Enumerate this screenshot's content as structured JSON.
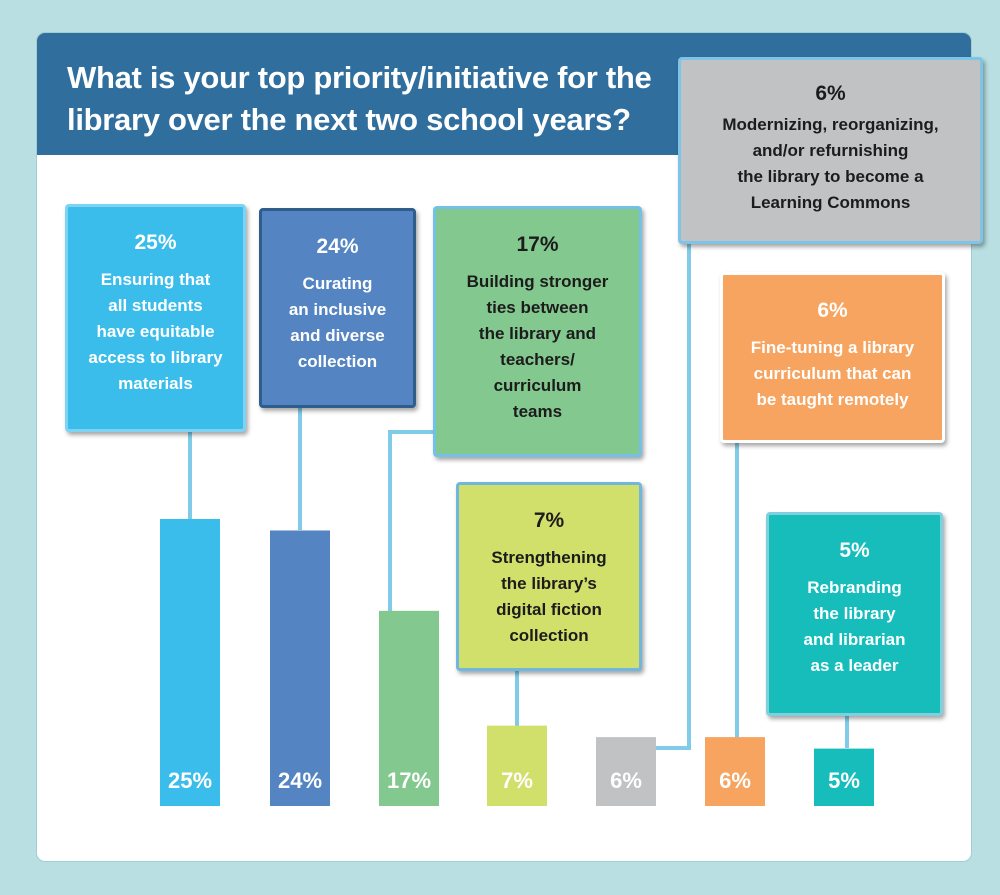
{
  "title": "What is your top priority/initiative for the library over the next two school years?",
  "chart_data": {
    "type": "bar",
    "title": "What is your top priority/initiative for the library over the next two school years?",
    "categories": [
      "Ensuring that all students have equitable access to library materials",
      "Curating an inclusive and diverse collection",
      "Building stronger ties between the library and teachers/ curriculum teams",
      "Strengthening the library’s digital fiction collection",
      "Modernizing, reorganizing, and/or refurnishing the library to become a Learning Commons",
      "Fine-tuning a library curriculum that can be taught remotely",
      "Rebranding the library and librarian as a leader"
    ],
    "values": [
      25,
      24,
      17,
      7,
      6,
      6,
      5
    ],
    "value_labels": [
      "25%",
      "24%",
      "17%",
      "7%",
      "6%",
      "6%",
      "5%"
    ],
    "colors": [
      "#3bbdec",
      "#5484c2",
      "#83c88e",
      "#d1e06b",
      "#c1c2c4",
      "#f6a45f",
      "#16bdbb"
    ],
    "box_borders": [
      "#7fd3f2",
      "#2f5d8c",
      "#74c0e6",
      "#6fb7de",
      "#7ec3e8",
      "#ffffff",
      "#7fd0dd"
    ],
    "callouts": [
      {
        "pct": "25%",
        "lines": [
          "Ensuring that",
          "all students",
          "have equitable",
          "access to library",
          "materials"
        ]
      },
      {
        "pct": "24%",
        "lines": [
          "Curating",
          "an inclusive",
          "and diverse",
          "collection"
        ]
      },
      {
        "pct": "17%",
        "lines": [
          "Building stronger",
          "ties between",
          "the library and",
          "teachers/",
          "curriculum",
          "teams"
        ]
      },
      {
        "pct": "7%",
        "lines": [
          "Strengthening",
          "the library’s",
          "digital fiction",
          "collection"
        ]
      },
      {
        "pct": "6%",
        "lines": [
          "Modernizing, reorganizing,",
          "and/or refurnishing",
          "the library to become a",
          "Learning Commons"
        ]
      },
      {
        "pct": "6%",
        "lines": [
          "Fine-tuning a library",
          "curriculum that can",
          "be taught remotely"
        ]
      },
      {
        "pct": "5%",
        "lines": [
          "Rebranding",
          "the library",
          "and librarian",
          "as a leader"
        ]
      }
    ],
    "ylim": [
      0,
      25
    ],
    "grid": false,
    "legend": "none"
  }
}
